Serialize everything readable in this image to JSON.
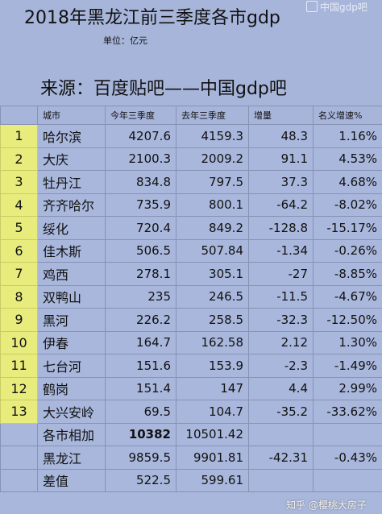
{
  "header": {
    "title": "2018年黑龙江前三季度各市gdp",
    "unit": "单位：亿元",
    "source": "来源：百度贴吧——中国gdp吧"
  },
  "watermarks": {
    "top": "中国gdp吧",
    "bottom": "知乎 @樱桃大房子"
  },
  "table": {
    "columns": [
      "",
      "城市",
      "今年三季度",
      "去年三季度",
      "增量",
      "名义增速%"
    ],
    "rows": [
      {
        "idx": "1",
        "city": "哈尔滨",
        "this_year": "4207.6",
        "last_year": "4159.3",
        "increment": "48.3",
        "growth": "1.16%"
      },
      {
        "idx": "2",
        "city": "大庆",
        "this_year": "2100.3",
        "last_year": "2009.2",
        "increment": "91.1",
        "growth": "4.53%"
      },
      {
        "idx": "3",
        "city": "牡丹江",
        "this_year": "834.8",
        "last_year": "797.5",
        "increment": "37.3",
        "growth": "4.68%"
      },
      {
        "idx": "4",
        "city": "齐齐哈尔",
        "this_year": "735.9",
        "last_year": "800.1",
        "increment": "-64.2",
        "growth": "-8.02%"
      },
      {
        "idx": "5",
        "city": "绥化",
        "this_year": "720.4",
        "last_year": "849.2",
        "increment": "-128.8",
        "growth": "-15.17%"
      },
      {
        "idx": "6",
        "city": "佳木斯",
        "this_year": "506.5",
        "last_year": "507.84",
        "increment": "-1.34",
        "growth": "-0.26%"
      },
      {
        "idx": "7",
        "city": "鸡西",
        "this_year": "278.1",
        "last_year": "305.1",
        "increment": "-27",
        "growth": "-8.85%"
      },
      {
        "idx": "8",
        "city": "双鸭山",
        "this_year": "235",
        "last_year": "246.5",
        "increment": "-11.5",
        "growth": "-4.67%"
      },
      {
        "idx": "9",
        "city": "黑河",
        "this_year": "226.2",
        "last_year": "258.5",
        "increment": "-32.3",
        "growth": "-12.50%"
      },
      {
        "idx": "10",
        "city": "伊春",
        "this_year": "164.7",
        "last_year": "162.58",
        "increment": "2.12",
        "growth": "1.30%"
      },
      {
        "idx": "11",
        "city": "七台河",
        "this_year": "151.6",
        "last_year": "153.9",
        "increment": "-2.3",
        "growth": "-1.49%"
      },
      {
        "idx": "12",
        "city": "鹤岗",
        "this_year": "151.4",
        "last_year": "147",
        "increment": "4.4",
        "growth": "2.99%"
      },
      {
        "idx": "13",
        "city": "大兴安岭",
        "this_year": "69.5",
        "last_year": "104.7",
        "increment": "-35.2",
        "growth": "-33.62%"
      }
    ],
    "summary": [
      {
        "label": "各市相加",
        "this_year": "10382",
        "last_year": "10501.42",
        "increment": "",
        "growth": ""
      },
      {
        "label": "黑龙江",
        "this_year": "9859.5",
        "last_year": "9901.81",
        "increment": "-42.31",
        "growth": "-0.43%"
      },
      {
        "label": "差值",
        "this_year": "522.5",
        "last_year": "599.61",
        "increment": "",
        "growth": ""
      }
    ]
  }
}
